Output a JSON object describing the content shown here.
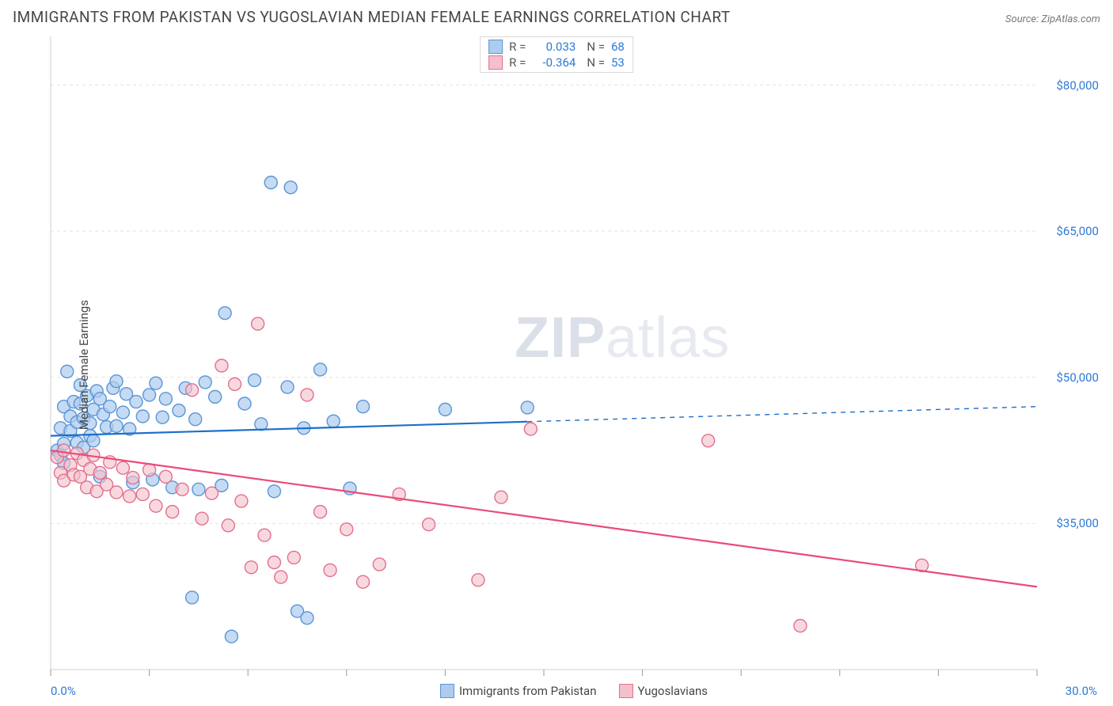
{
  "title": "IMMIGRANTS FROM PAKISTAN VS YUGOSLAVIAN MEDIAN FEMALE EARNINGS CORRELATION CHART",
  "source": "Source: ZipAtlas.com",
  "watermark": {
    "bold": "ZIP",
    "rest": "atlas"
  },
  "chart": {
    "type": "scatter",
    "ylabel": "Median Female Earnings",
    "background_color": "#ffffff",
    "grid_color": "#e4e4e4",
    "axis_color": "#cfcfcf",
    "tick_color": "#9a9a9a",
    "x": {
      "min": 0.0,
      "max": 30.0,
      "min_label": "0.0%",
      "max_label": "30.0%",
      "tick_step": 3.0
    },
    "y": {
      "min": 20000,
      "max": 85000,
      "ticks": [
        35000,
        50000,
        65000,
        80000
      ],
      "tick_labels": [
        "$35,000",
        "$50,000",
        "$65,000",
        "$80,000"
      ]
    },
    "series": [
      {
        "id": "pakistan",
        "label": "Immigrants from Pakistan",
        "r": "0.033",
        "n": "68",
        "fill": "#aeccee",
        "stroke": "#5a96d6",
        "marker_radius": 8,
        "marker_opacity": 0.72,
        "trend": {
          "color": "#1d6fc9",
          "width": 2.2,
          "y_at_xmin": 44000,
          "y_at_xmax": 47000,
          "solid_until_x": 14.5
        },
        "points": [
          [
            0.2,
            42500
          ],
          [
            0.3,
            42000
          ],
          [
            0.3,
            44800
          ],
          [
            0.4,
            43200
          ],
          [
            0.4,
            41200
          ],
          [
            0.4,
            47000
          ],
          [
            0.5,
            50600
          ],
          [
            0.6,
            44500
          ],
          [
            0.6,
            46000
          ],
          [
            0.7,
            47500
          ],
          [
            0.8,
            45400
          ],
          [
            0.8,
            43300
          ],
          [
            0.9,
            49200
          ],
          [
            0.9,
            47300
          ],
          [
            1.0,
            45800
          ],
          [
            1.0,
            42800
          ],
          [
            1.1,
            48100
          ],
          [
            1.2,
            45300
          ],
          [
            1.2,
            44000
          ],
          [
            1.3,
            46700
          ],
          [
            1.3,
            43500
          ],
          [
            1.4,
            48600
          ],
          [
            1.5,
            47800
          ],
          [
            1.5,
            39800
          ],
          [
            1.6,
            46200
          ],
          [
            1.7,
            44900
          ],
          [
            1.8,
            47000
          ],
          [
            1.9,
            48900
          ],
          [
            2.0,
            45000
          ],
          [
            2.0,
            49600
          ],
          [
            2.2,
            46400
          ],
          [
            2.3,
            48300
          ],
          [
            2.4,
            44700
          ],
          [
            2.5,
            39200
          ],
          [
            2.6,
            47500
          ],
          [
            2.8,
            46000
          ],
          [
            3.0,
            48200
          ],
          [
            3.1,
            39500
          ],
          [
            3.2,
            49400
          ],
          [
            3.4,
            45900
          ],
          [
            3.5,
            47800
          ],
          [
            3.7,
            38700
          ],
          [
            3.9,
            46600
          ],
          [
            4.1,
            48900
          ],
          [
            4.3,
            27400
          ],
          [
            4.4,
            45700
          ],
          [
            4.5,
            38500
          ],
          [
            4.7,
            49500
          ],
          [
            5.0,
            48000
          ],
          [
            5.2,
            38900
          ],
          [
            5.3,
            56600
          ],
          [
            5.5,
            23400
          ],
          [
            5.9,
            47300
          ],
          [
            6.2,
            49700
          ],
          [
            6.4,
            45200
          ],
          [
            6.7,
            70000
          ],
          [
            6.8,
            38300
          ],
          [
            7.2,
            49000
          ],
          [
            7.3,
            69500
          ],
          [
            7.5,
            26000
          ],
          [
            7.7,
            44800
          ],
          [
            7.8,
            25300
          ],
          [
            8.2,
            50800
          ],
          [
            8.6,
            45500
          ],
          [
            9.1,
            38600
          ],
          [
            9.5,
            47000
          ],
          [
            12.0,
            46700
          ],
          [
            14.5,
            46900
          ]
        ]
      },
      {
        "id": "yugoslav",
        "label": "Yugoslavians",
        "r": "-0.364",
        "n": "53",
        "fill": "#f4c0cc",
        "stroke": "#e3708d",
        "marker_radius": 8,
        "marker_opacity": 0.62,
        "trend": {
          "color": "#e94b77",
          "width": 2.2,
          "y_at_xmin": 42500,
          "y_at_xmax": 28500,
          "solid_until_x": 30
        },
        "points": [
          [
            0.2,
            41800
          ],
          [
            0.3,
            40200
          ],
          [
            0.4,
            42500
          ],
          [
            0.4,
            39400
          ],
          [
            0.6,
            41000
          ],
          [
            0.7,
            40000
          ],
          [
            0.8,
            42200
          ],
          [
            0.9,
            39800
          ],
          [
            1.0,
            41500
          ],
          [
            1.1,
            38700
          ],
          [
            1.2,
            40600
          ],
          [
            1.3,
            42000
          ],
          [
            1.4,
            38300
          ],
          [
            1.5,
            40200
          ],
          [
            1.7,
            39000
          ],
          [
            1.8,
            41300
          ],
          [
            2.0,
            38200
          ],
          [
            2.2,
            40700
          ],
          [
            2.4,
            37800
          ],
          [
            2.5,
            39700
          ],
          [
            2.8,
            38000
          ],
          [
            3.0,
            40500
          ],
          [
            3.2,
            36800
          ],
          [
            3.5,
            39800
          ],
          [
            3.7,
            36200
          ],
          [
            4.0,
            38500
          ],
          [
            4.3,
            48700
          ],
          [
            4.6,
            35500
          ],
          [
            4.9,
            38100
          ],
          [
            5.2,
            51200
          ],
          [
            5.4,
            34800
          ],
          [
            5.6,
            49300
          ],
          [
            5.8,
            37300
          ],
          [
            6.1,
            30500
          ],
          [
            6.3,
            55500
          ],
          [
            6.5,
            33800
          ],
          [
            6.8,
            31000
          ],
          [
            7.0,
            29500
          ],
          [
            7.4,
            31500
          ],
          [
            7.8,
            48200
          ],
          [
            8.2,
            36200
          ],
          [
            8.5,
            30200
          ],
          [
            9.0,
            34400
          ],
          [
            9.5,
            29000
          ],
          [
            10.0,
            30800
          ],
          [
            10.6,
            38000
          ],
          [
            11.5,
            34900
          ],
          [
            13.0,
            29200
          ],
          [
            13.7,
            37700
          ],
          [
            14.6,
            44700
          ],
          [
            20.0,
            43500
          ],
          [
            22.8,
            24500
          ],
          [
            26.5,
            30700
          ]
        ]
      }
    ]
  },
  "stats_label": {
    "r": "R =",
    "n": "N ="
  }
}
